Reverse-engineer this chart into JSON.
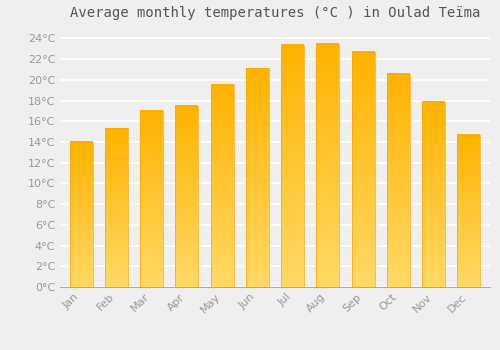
{
  "title": "Average monthly temperatures (°C ) in Oulad Teïma",
  "months": [
    "Jan",
    "Feb",
    "Mar",
    "Apr",
    "May",
    "Jun",
    "Jul",
    "Aug",
    "Sep",
    "Oct",
    "Nov",
    "Dec"
  ],
  "values": [
    14.0,
    15.3,
    17.0,
    17.5,
    19.5,
    21.1,
    23.4,
    23.5,
    22.7,
    20.6,
    17.9,
    14.7
  ],
  "bar_color_top": "#FFB300",
  "bar_color_bottom": "#FFD966",
  "bar_edge_color": "#FFA500",
  "background_color": "#EFEFEF",
  "plot_bg_color": "#EFEFEF",
  "grid_color": "#FFFFFF",
  "ylim": [
    0,
    25
  ],
  "ytick_step": 2,
  "title_fontsize": 10,
  "tick_fontsize": 8,
  "tick_label_color": "#999999",
  "title_color": "#555555",
  "bar_width": 0.65
}
